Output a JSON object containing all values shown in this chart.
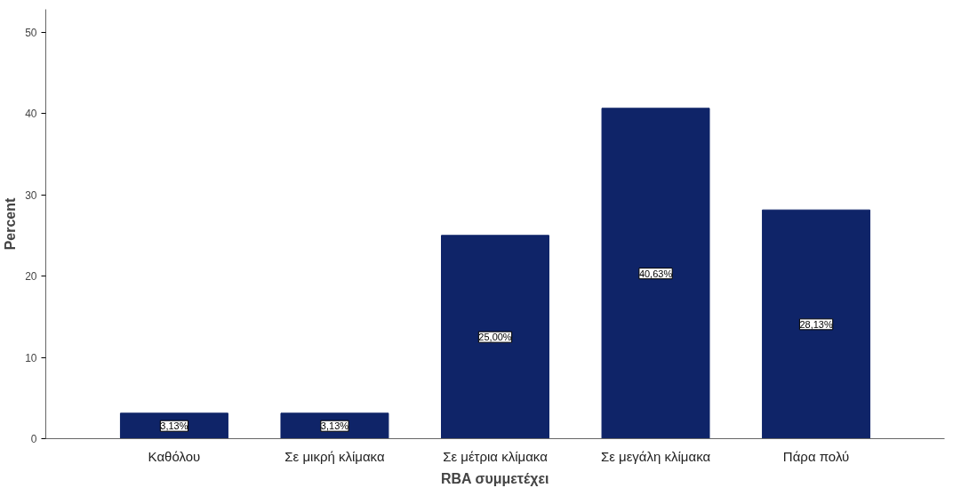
{
  "chart_data": {
    "type": "bar",
    "xlabel": "RBA συμμετέχει",
    "ylabel": "Percent",
    "categories": [
      "Καθόλου",
      "Σε μικρή κλίμακα",
      "Σε μέτρια κλίμακα",
      "Σε μεγάλη κλίμακα",
      "Πάρα πολύ"
    ],
    "values": [
      3.13,
      3.13,
      25.0,
      40.63,
      28.13
    ],
    "value_labels": [
      "3,13%",
      "3,13%",
      "25,00%",
      "40,63%",
      "28,13%"
    ],
    "color": "#0f2468",
    "ylim": [
      0,
      52.8
    ],
    "yticks": [
      0,
      10,
      20,
      30,
      40,
      50
    ],
    "grid": false
  }
}
